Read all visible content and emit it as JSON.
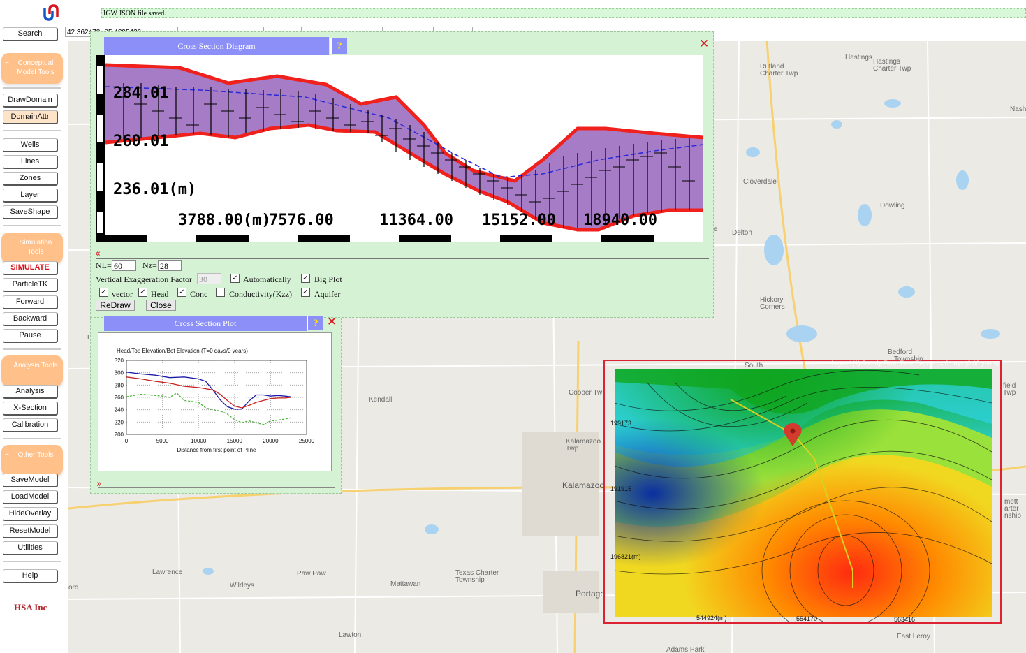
{
  "status_message": "IGW JSON file saved.",
  "coordinates_value": "42.362478,-85.4395426",
  "sidebar": {
    "search": "Search",
    "groups": {
      "conceptual": "Conceptual Model Tools",
      "simulation": "Simulation Tools",
      "analysis": "Analysis Tools",
      "other": "Other Tools"
    },
    "buttons": {
      "drawdomain": "DrawDomain",
      "domainattr": "DomainAttr",
      "wells": "Wells",
      "lines": "Lines",
      "zones": "Zones",
      "layer": "Layer",
      "saveshape": "SaveShape",
      "simulate": "SIMULATE",
      "particletk": "ParticleTK",
      "forward": "Forward",
      "backward": "Backward",
      "pause": "Pause",
      "analysis": "Analysis",
      "xsection": "X-Section",
      "calibration": "Calibration",
      "savemodel": "SaveModel",
      "loadmodel": "LoadModel",
      "hideoverlay": "HideOverlay",
      "resetmodel": "ResetModel",
      "utilities": "Utilities",
      "help": "Help"
    },
    "company": "HSA Inc"
  },
  "cross_section_dialog": {
    "title": "Cross Section Diagram",
    "help": "?",
    "close_icon": "✕",
    "collapse_icon": "«",
    "labels": {
      "y1": "284.01",
      "y2": "260.01",
      "y3": "236.01(m)",
      "x1": "3788.00(m)",
      "x2": "7576.00",
      "x3": "11364.00",
      "x4": "15152.00",
      "x5": "18940.00"
    },
    "nl_label": "NL=",
    "nl_value": "60",
    "nz_label": "Nz=",
    "nz_value": "28",
    "vef_label": "Vertical Exaggeration Factor",
    "vef_value": "30",
    "automatically": "Automatically",
    "big_plot": "Big Plot",
    "vector": "vector",
    "head": "Head",
    "conc": "Conc",
    "conductivity": "Conductivity(Kzz)",
    "aquifer": "Aquifer",
    "checks": {
      "automatically": true,
      "big_plot": true,
      "vector": true,
      "head": true,
      "conc": true,
      "conductivity": false,
      "aquifer": true
    },
    "redraw": "ReDraw",
    "close": "Close"
  },
  "cross_section_plot": {
    "title": "Cross Section Plot",
    "help": "?",
    "close_icon": "✕",
    "expand_icon": "»"
  },
  "chart_data": {
    "type": "line",
    "title": "Head/Top Elevation/Bot Elevation (T=0 days/0 years)",
    "xlabel": "Distance from first point of Pline",
    "ylabel": "",
    "xlim": [
      0,
      25000
    ],
    "ylim": [
      200,
      320
    ],
    "xticks": [
      0,
      5000,
      10000,
      15000,
      20000,
      25000
    ],
    "yticks": [
      200,
      220,
      240,
      260,
      280,
      300,
      320
    ],
    "grid": true,
    "series": [
      {
        "name": "Top Elevation",
        "color": "#1a1aa8",
        "style": "solid",
        "x": [
          0,
          2000,
          4000,
          6000,
          8000,
          10000,
          11000,
          12000,
          13000,
          14000,
          15000,
          16000,
          17000,
          18000,
          19000,
          20000,
          21000,
          22000,
          22800
        ],
        "y": [
          301,
          298,
          296,
          292,
          293,
          290,
          286,
          272,
          256,
          245,
          241,
          241,
          254,
          264,
          264,
          262,
          263,
          262,
          261
        ]
      },
      {
        "name": "Head",
        "color": "#c8201e",
        "style": "solid",
        "x": [
          0,
          2000,
          4000,
          6000,
          8000,
          10000,
          12000,
          13000,
          14000,
          15000,
          16000,
          17000,
          18000,
          19000,
          20000,
          21000,
          22000,
          22800
        ],
        "y": [
          293,
          290,
          286,
          283,
          278,
          276,
          272,
          265,
          255,
          246,
          243,
          247,
          252,
          255,
          258,
          259,
          259,
          260
        ]
      },
      {
        "name": "Bot Elevation",
        "color": "#49b636",
        "style": "dashed",
        "x": [
          0,
          2000,
          4000,
          5000,
          6000,
          7000,
          8000,
          10000,
          11000,
          12000,
          13000,
          14000,
          15000,
          16000,
          17000,
          18000,
          19000,
          20000,
          21000,
          22000,
          22800
        ],
        "y": [
          261,
          265,
          263,
          262,
          260,
          267,
          255,
          252,
          243,
          240,
          238,
          233,
          224,
          219,
          222,
          219,
          216,
          222,
          223,
          225,
          227
        ]
      }
    ]
  },
  "overlay": {
    "caption": "Layer 1(1) Steady Flow, Time Elapsed = 0 days (0.00 years)",
    "label_y1": "199173",
    "label_y2": "191915",
    "label_y3": "196821(m)",
    "label_x1": "544924(m)",
    "label_x2": "554170",
    "label_x3": "563416"
  },
  "map_places": {
    "hastings": "Hastings",
    "hastings_twp": "Hastings Charter Twp",
    "rutland": "Rutland Charter Twp",
    "nash": "Nash",
    "cloverdale": "Cloverdale",
    "dowling": "Dowling",
    "delton": "Delton",
    "hickory": "Hickory Corners",
    "bedford": "Bedford",
    "bedford_twp": "Township",
    "kendall": "Kendall",
    "cooper": "Cooper Tw",
    "kalamazoo_twp": "Kalamazoo Twp",
    "kalamazoo": "Kalamazoo",
    "lawrence": "Lawrence",
    "wildeys": "Wildeys",
    "pawpaw": "Paw Paw",
    "mattawan": "Mattawan",
    "texas": "Texas Charter Township",
    "portage": "Portage",
    "lawton": "Lawton",
    "eastleroy": "East Leroy",
    "adamspark": "Adams Park",
    "south": "South",
    "ord": "ord",
    "eld_twp": "field Twp",
    "emmett": "mett arter nship",
    "l_letter": "L",
    "e_letter": "e"
  },
  "colors": {
    "title_bar": "#8b8ff7",
    "dialog_bg": "#d5f2d5",
    "accent_red": "#d8131a",
    "group_orange": "#ffc08a"
  }
}
